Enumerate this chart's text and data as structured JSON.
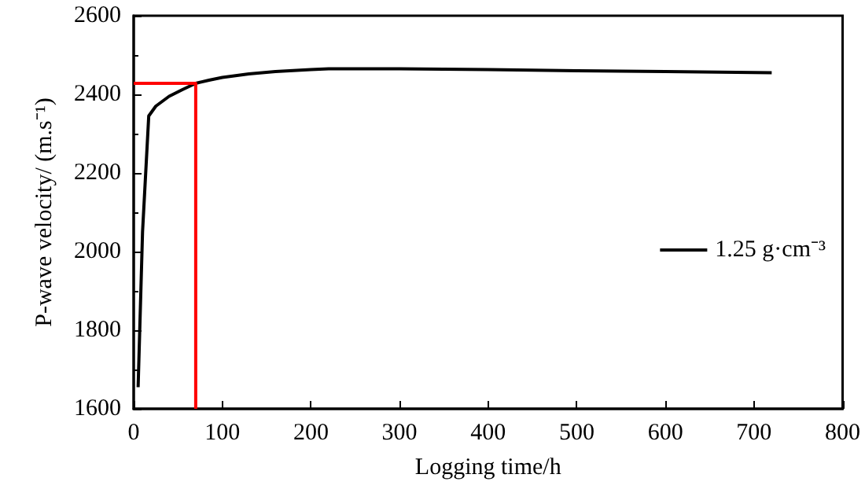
{
  "chart_data": {
    "type": "line",
    "xlabel": "Logging time/h",
    "ylabel": "P-wave velocity/ (m.s⁻¹)",
    "xlim": [
      0,
      800
    ],
    "xticks": [
      0,
      100,
      200,
      300,
      400,
      500,
      600,
      700,
      800
    ],
    "ylim": [
      1600,
      2600
    ],
    "yticks": [
      1600,
      1800,
      2000,
      2200,
      2400,
      2600
    ],
    "grid": false,
    "legend": "right",
    "marker": "none",
    "line_style": "solid",
    "series": [
      {
        "name": "1.25 g·cm⁻³",
        "color": "#000000",
        "x": [
          5,
          10,
          17,
          25,
          40,
          55,
          70,
          85,
          100,
          130,
          160,
          200,
          220,
          300,
          400,
          500,
          600,
          720
        ],
        "values": [
          1655,
          2050,
          2345,
          2370,
          2395,
          2412,
          2428,
          2436,
          2443,
          2452,
          2458,
          2463,
          2465,
          2465,
          2463,
          2460,
          2458,
          2455
        ]
      },
      {
        "color": "#ff0000",
        "x": [
          0,
          70,
          70
        ],
        "values": [
          2428,
          2428,
          1600
        ]
      }
    ]
  }
}
